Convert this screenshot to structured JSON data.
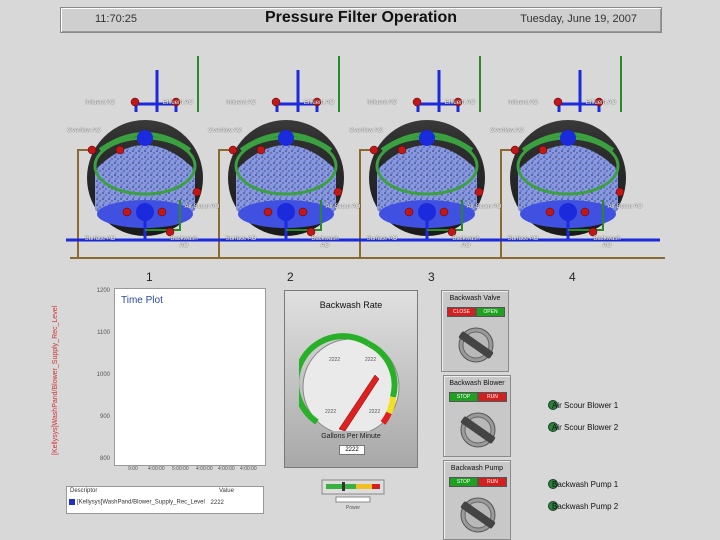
{
  "header": {
    "time": "11:70:25",
    "title": "Pressure Filter Operation",
    "date": "Tuesday, June 19, 2007"
  },
  "filters": [
    {
      "number": "1",
      "labels": [
        "Influent AO",
        "Effluent AO",
        "Overflow AO",
        "Air Scour AO",
        "Surface AO",
        "Backwash AO"
      ]
    },
    {
      "number": "2",
      "labels": [
        "Influent AO",
        "Effluent AO",
        "Overflow AO",
        "Air Scour AO",
        "Surface AO",
        "Backwash AO"
      ]
    },
    {
      "number": "3",
      "labels": [
        "Influent AO",
        "Effluent AO",
        "Overflow AO",
        "Air Scour AO",
        "Surface AO",
        "Backwash AO"
      ]
    },
    {
      "number": "4",
      "labels": [
        "Influent AO",
        "Effluent AO",
        "Overflow AO",
        "Air Scour AO",
        "Surface AO",
        "Backwash AO"
      ]
    }
  ],
  "trend": {
    "title": "Time Plot",
    "y_axis_label": "[Kellysys]WashPand/Blower_Supply_Rec_Level",
    "y_ticks": [
      "1200",
      "1100",
      "1000",
      "900",
      "800"
    ],
    "x_ticks": [
      "9:00",
      "4:00:00",
      "5:00:00",
      "4:00:00",
      "4:00:00",
      "4:00:00"
    ],
    "legend_headers": [
      "Descriptor",
      "Value"
    ],
    "legend_row": "[Kellysys]WashPand/Blower_Supply_Rec_Level",
    "legend_value": "2222"
  },
  "backwash_rate": {
    "title": "Backwash Rate",
    "caption": "Gallons Per Minute",
    "value_display": "2222",
    "dial_labels": [
      "2222",
      "2222",
      "2222",
      "2222"
    ]
  },
  "controls": [
    {
      "title": "Backwash Valve",
      "btn_a": "CLOSE",
      "btn_b": "OPEN"
    },
    {
      "title": "Backwash Blower",
      "btn_a": "STOP",
      "btn_b": "RUN"
    },
    {
      "title": "Backwash Pump",
      "btn_a": "STOP",
      "btn_b": "RUN"
    }
  ],
  "side_legend": [
    "Air Scour Blower 1",
    "Air Scour Blower 2",
    "Backwash Pump 1",
    "Backwash Pump 2"
  ],
  "slider": {
    "caption": "Power"
  },
  "colors": {
    "pipe_blue": "#1a2adc",
    "pipe_green": "#2a8a2a",
    "pipe_brown": "#8a6a30",
    "valve_red": "#c01818",
    "tank_dark": "#3a3a3a",
    "media_green": "#3aa040",
    "water_blue": "#4050e0"
  }
}
